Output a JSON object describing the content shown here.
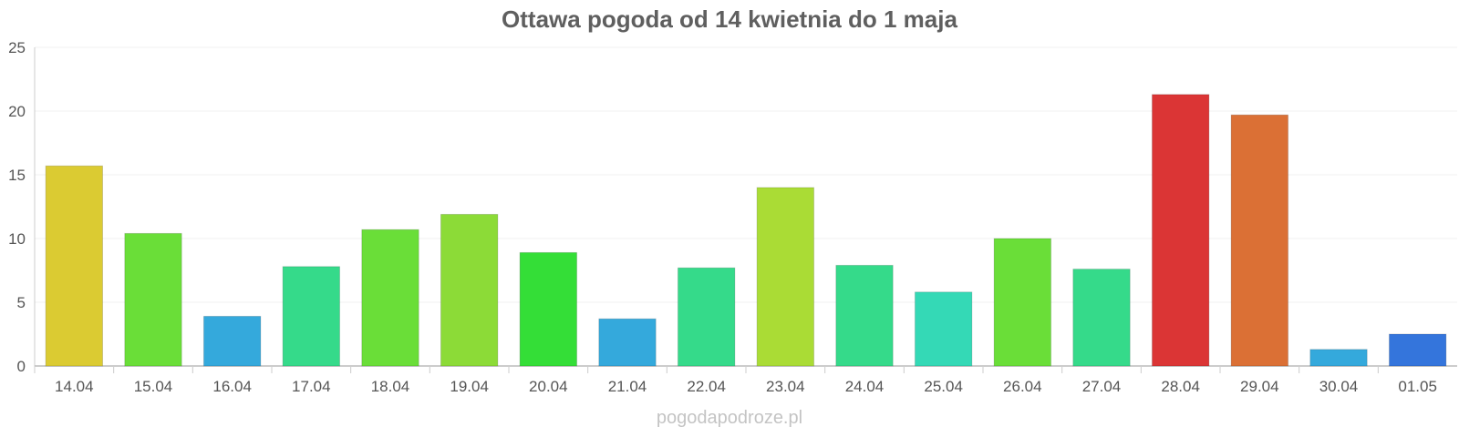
{
  "chart_data": {
    "type": "bar",
    "title": "Ottawa pogoda od 14 kwietnia do 1 maja",
    "xlabel": "",
    "ylabel": "",
    "ylim": [
      0,
      25
    ],
    "yticks": [
      0,
      5,
      10,
      15,
      20,
      25
    ],
    "grid": true,
    "legend": "none",
    "categories": [
      "14.04",
      "15.04",
      "16.04",
      "17.04",
      "18.04",
      "19.04",
      "20.04",
      "21.04",
      "22.04",
      "23.04",
      "24.04",
      "25.04",
      "26.04",
      "27.04",
      "28.04",
      "29.04",
      "30.04",
      "01.05"
    ],
    "values": [
      15.7,
      10.4,
      3.9,
      7.8,
      10.7,
      11.9,
      8.9,
      3.7,
      7.7,
      14.0,
      7.9,
      5.8,
      10.0,
      7.6,
      21.3,
      19.7,
      1.3,
      2.5
    ],
    "colors": [
      "#dbcb32",
      "#6ade38",
      "#34a9dc",
      "#35da8a",
      "#6ade38",
      "#8cdb37",
      "#34de37",
      "#34a9dc",
      "#35da8a",
      "#aadc35",
      "#35da8a",
      "#34d9b6",
      "#6ade38",
      "#35da8a",
      "#db3535",
      "#db7035",
      "#34a9dc",
      "#3475dc"
    ]
  },
  "watermark": "pogodapodroze.pl"
}
